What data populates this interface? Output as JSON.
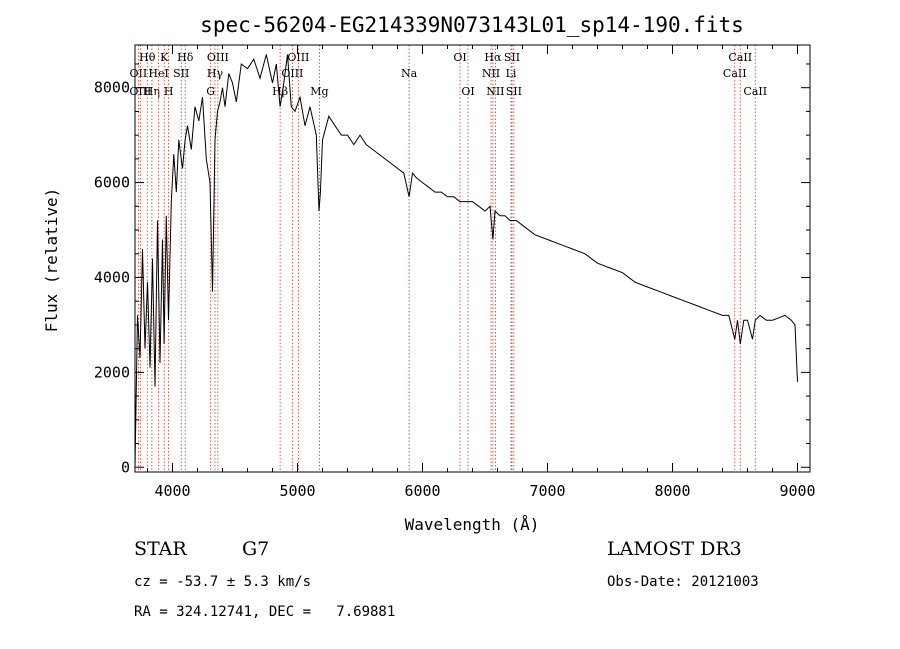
{
  "chart_data": {
    "type": "line",
    "title": "spec-56204-EG214339N073143L01_sp14-190.fits",
    "xlabel": "Wavelength (Å)",
    "ylabel": "Flux (relative)",
    "xlim": [
      3700,
      9100
    ],
    "ylim": [
      -100,
      8900
    ],
    "xticks": [
      4000,
      5000,
      6000,
      7000,
      8000,
      9000
    ],
    "yticks": [
      0,
      2000,
      4000,
      6000,
      8000
    ],
    "series": [
      {
        "name": "spectrum",
        "x": [
          3700,
          3720,
          3740,
          3760,
          3780,
          3800,
          3820,
          3840,
          3860,
          3880,
          3900,
          3920,
          3933,
          3950,
          3968,
          3990,
          4010,
          4030,
          4050,
          4080,
          4101,
          4120,
          4150,
          4180,
          4210,
          4240,
          4270,
          4300,
          4320,
          4340,
          4360,
          4380,
          4400,
          4420,
          4450,
          4480,
          4510,
          4550,
          4600,
          4650,
          4700,
          4750,
          4800,
          4830,
          4861,
          4890,
          4920,
          4950,
          4980,
          5020,
          5060,
          5100,
          5150,
          5172,
          5183,
          5200,
          5250,
          5300,
          5350,
          5400,
          5450,
          5500,
          5550,
          5600,
          5650,
          5700,
          5750,
          5800,
          5850,
          5893,
          5920,
          5950,
          6000,
          6050,
          6100,
          6150,
          6200,
          6250,
          6300,
          6350,
          6400,
          6450,
          6500,
          6540,
          6563,
          6580,
          6620,
          6660,
          6700,
          6750,
          6800,
          6900,
          7000,
          7100,
          7200,
          7300,
          7400,
          7500,
          7600,
          7700,
          7800,
          7900,
          8000,
          8100,
          8200,
          8300,
          8400,
          8450,
          8498,
          8520,
          8542,
          8570,
          8600,
          8640,
          8662,
          8700,
          8750,
          8800,
          8850,
          8900,
          8950,
          8980,
          9000
        ],
        "values": [
          0,
          3200,
          2300,
          4600,
          2500,
          3900,
          2100,
          4400,
          1700,
          5200,
          2200,
          4800,
          2600,
          5300,
          3100,
          5600,
          6600,
          5800,
          6900,
          6300,
          6900,
          7200,
          6700,
          7600,
          7300,
          7800,
          6500,
          6000,
          3700,
          6900,
          7500,
          7700,
          8000,
          7600,
          8300,
          8100,
          7700,
          8500,
          8400,
          8600,
          8200,
          8700,
          8100,
          8500,
          7600,
          8100,
          8700,
          7600,
          7500,
          7800,
          7200,
          7600,
          7000,
          5400,
          5800,
          6900,
          7400,
          7200,
          7000,
          7000,
          6800,
          7000,
          6800,
          6700,
          6600,
          6500,
          6400,
          6300,
          6200,
          5700,
          6200,
          6100,
          6000,
          5900,
          5800,
          5800,
          5700,
          5700,
          5600,
          5600,
          5600,
          5500,
          5400,
          5500,
          4800,
          5400,
          5300,
          5300,
          5200,
          5200,
          5100,
          4900,
          4800,
          4700,
          4600,
          4500,
          4300,
          4200,
          4100,
          3900,
          3800,
          3700,
          3600,
          3500,
          3400,
          3300,
          3200,
          3200,
          2700,
          3100,
          2600,
          3100,
          3100,
          2700,
          3100,
          3200,
          3100,
          3100,
          3150,
          3200,
          3100,
          3000,
          1800
        ]
      }
    ],
    "line_markers": [
      {
        "label": "Hθ",
        "x": 3798,
        "row": 1
      },
      {
        "label": "OII",
        "x": 3727,
        "row": 2
      },
      {
        "label": "OIII",
        "x": 3743,
        "row": 3
      },
      {
        "label": "Hη",
        "x": 3835,
        "row": 3
      },
      {
        "label": "HeI",
        "x": 3889,
        "row": 2
      },
      {
        "label": "K",
        "x": 3934,
        "row": 1
      },
      {
        "label": "H",
        "x": 3969,
        "row": 3
      },
      {
        "label": "SII",
        "x": 4070,
        "row": 2
      },
      {
        "label": "Hδ",
        "x": 4102,
        "row": 1
      },
      {
        "label": "G",
        "x": 4305,
        "row": 3
      },
      {
        "label": "Hγ",
        "x": 4340,
        "row": 2
      },
      {
        "label": "OIII",
        "x": 4363,
        "row": 1
      },
      {
        "label": "Hβ",
        "x": 4861,
        "row": 3
      },
      {
        "label": "OIII",
        "x": 4959,
        "row": 2
      },
      {
        "label": "OIII",
        "x": 5007,
        "row": 1
      },
      {
        "label": "Mg",
        "x": 5175,
        "row": 3
      },
      {
        "label": "Na",
        "x": 5893,
        "row": 2
      },
      {
        "label": "OI",
        "x": 6300,
        "row": 1
      },
      {
        "label": "OI",
        "x": 6364,
        "row": 3
      },
      {
        "label": "NII",
        "x": 6548,
        "row": 2
      },
      {
        "label": "Hα",
        "x": 6563,
        "row": 1
      },
      {
        "label": "NII",
        "x": 6583,
        "row": 3
      },
      {
        "label": "Li",
        "x": 6708,
        "row": 2
      },
      {
        "label": "SII",
        "x": 6716,
        "row": 1
      },
      {
        "label": "SII",
        "x": 6731,
        "row": 3
      },
      {
        "label": "CaII",
        "x": 8498,
        "row": 2
      },
      {
        "label": "CaII",
        "x": 8542,
        "row": 1
      },
      {
        "label": "CaII",
        "x": 8662,
        "row": 3
      }
    ]
  },
  "info": {
    "class": "STAR",
    "subclass": "G7",
    "survey": "LAMOST DR3",
    "cz": "cz = -53.7 ± 5.3 km/s",
    "obs_date": "Obs-Date: 20121003",
    "coords": "RA = 324.12741, DEC =   7.69881"
  }
}
